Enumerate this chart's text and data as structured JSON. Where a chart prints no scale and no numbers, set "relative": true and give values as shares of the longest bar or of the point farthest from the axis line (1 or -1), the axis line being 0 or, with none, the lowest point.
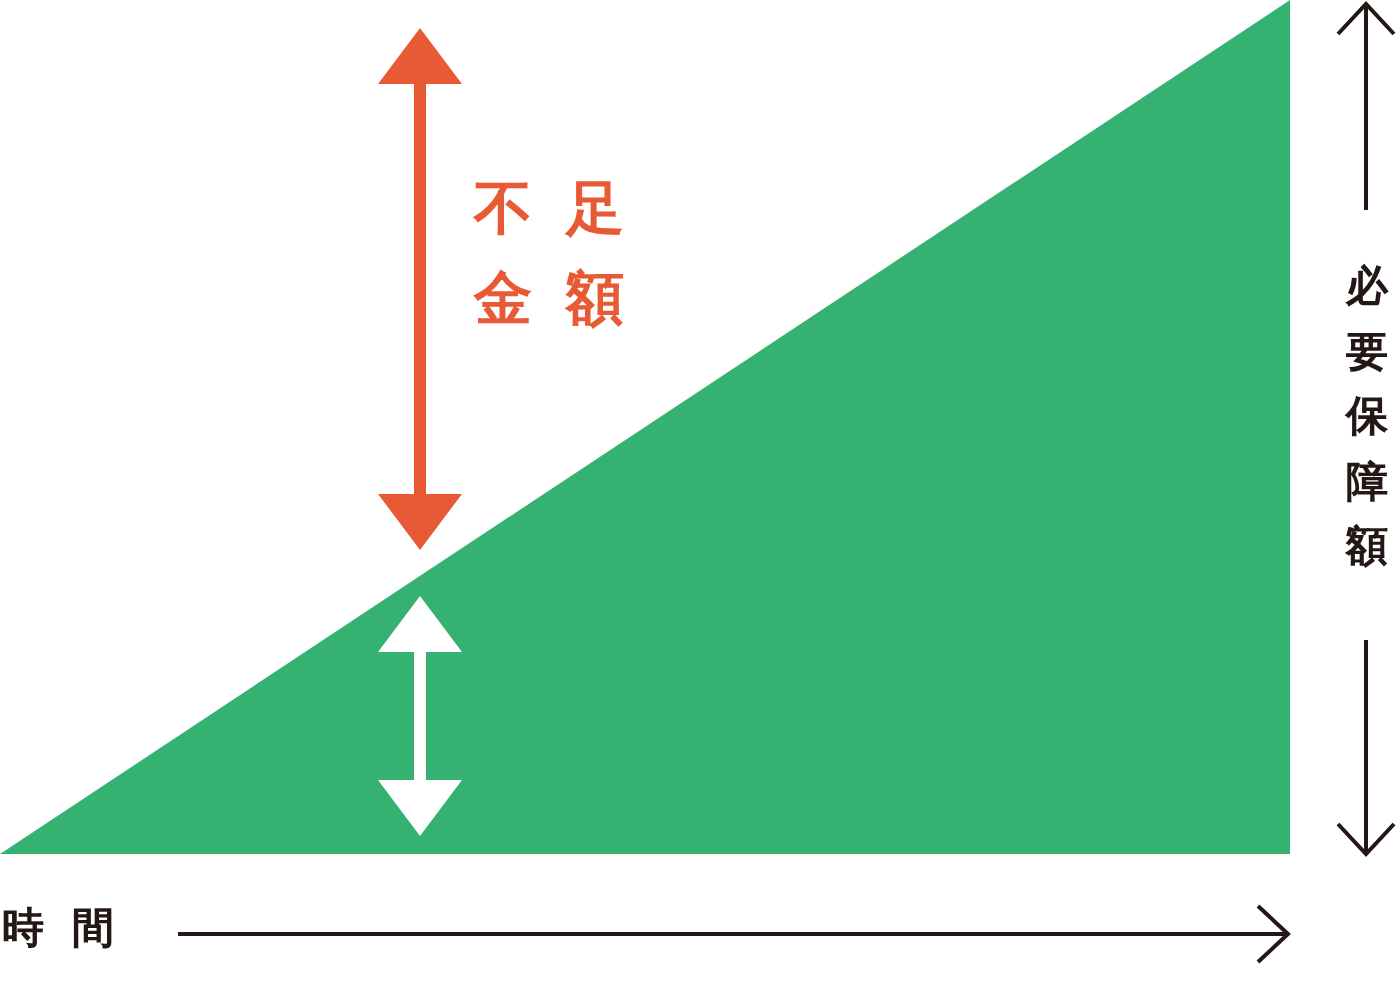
{
  "chart_data": {
    "type": "area",
    "categories": [
      null,
      null
    ],
    "values": [
      0,
      1
    ],
    "relative": true,
    "color": "#35b171",
    "xlabel": "時間",
    "ylabel": "必要保障額",
    "annotations": [
      "不足金額"
    ]
  }
}
